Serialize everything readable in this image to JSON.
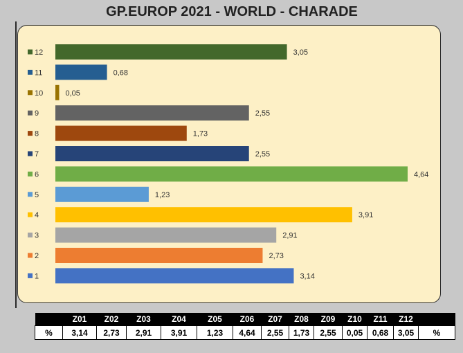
{
  "title": "GP.EUROP 2021 - WORLD  - CHARADE",
  "chart_data": {
    "type": "bar",
    "orientation": "horizontal",
    "categories": [
      "1",
      "2",
      "3",
      "4",
      "5",
      "6",
      "7",
      "8",
      "9",
      "10",
      "11",
      "12"
    ],
    "values": [
      3.14,
      2.73,
      2.91,
      3.91,
      1.23,
      4.64,
      2.55,
      1.73,
      2.55,
      0.05,
      0.68,
      3.05
    ],
    "value_labels": [
      "3,14",
      "2,73",
      "2,91",
      "3,91",
      "1,23",
      "4,64",
      "2,55",
      "1,73",
      "2,55",
      "0,05",
      "0,68",
      "3,05"
    ],
    "colors": [
      "#4472c4",
      "#ed7d31",
      "#a5a5a5",
      "#ffc000",
      "#5b9bd5",
      "#70ad47",
      "#264478",
      "#9e480e",
      "#636363",
      "#997300",
      "#255e91",
      "#43682b"
    ],
    "xlim": [
      0,
      4.64
    ],
    "grid": false,
    "legend": "none"
  },
  "table": {
    "headers": [
      "",
      "Z01",
      "Z02",
      "Z03",
      "Z04",
      "Z05",
      "Z06",
      "Z07",
      "Z08",
      "Z09",
      "Z10",
      "Z11",
      "Z12",
      ""
    ],
    "row": [
      "%",
      "3,14",
      "2,73",
      "2,91",
      "3,91",
      "1,23",
      "4,64",
      "2,55",
      "1,73",
      "2,55",
      "0,05",
      "0,68",
      "3,05",
      "%"
    ]
  }
}
